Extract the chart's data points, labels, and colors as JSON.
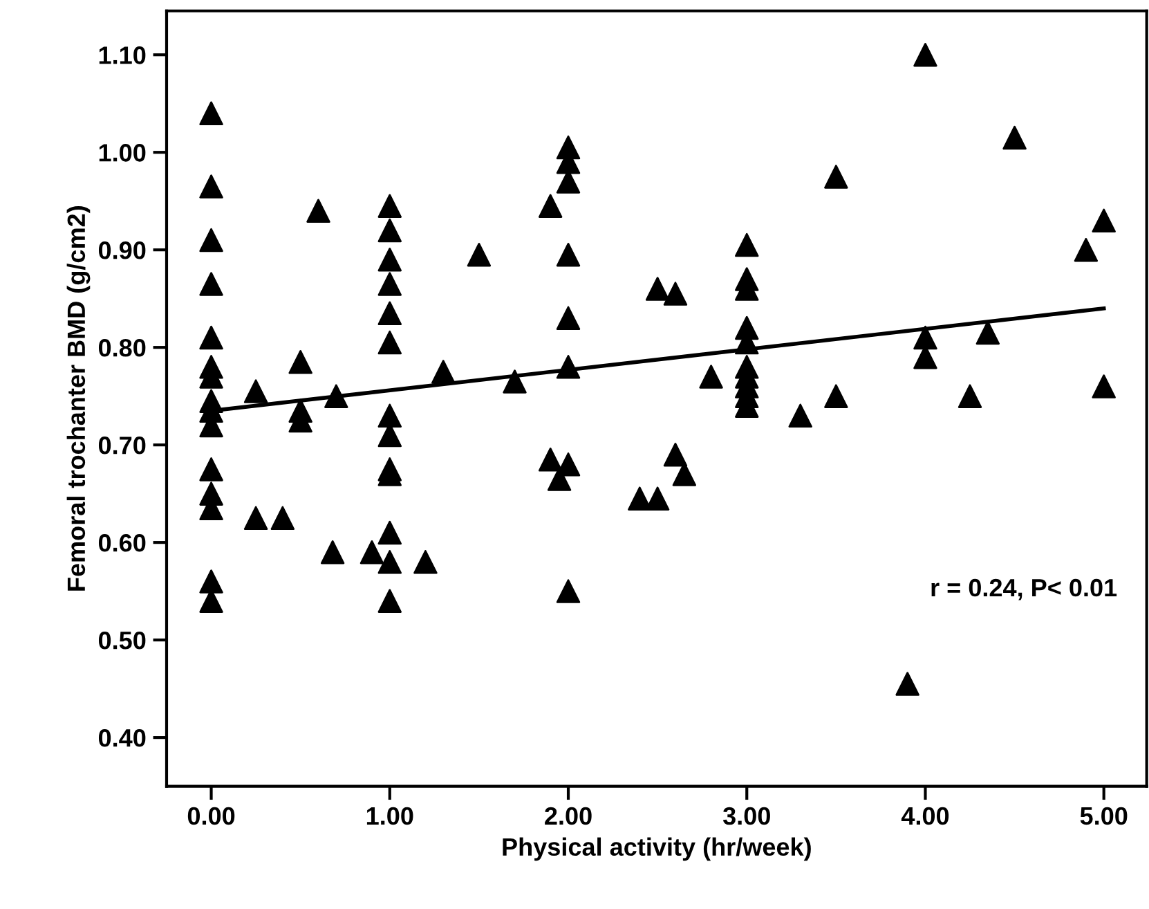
{
  "chart_data": {
    "type": "scatter",
    "xlabel": "Physical activity (hr/week)",
    "ylabel": "Femoral trochanter BMD (g/cm2)",
    "annotations": [
      "r = 0.24, P< 0.01"
    ],
    "xlim": [
      -0.25,
      5.24
    ],
    "ylim": [
      0.35,
      1.145
    ],
    "xticks": [
      {
        "value": 0,
        "label": "0.00"
      },
      {
        "value": 1,
        "label": "1.00"
      },
      {
        "value": 2,
        "label": "2.00"
      },
      {
        "value": 3,
        "label": "3.00"
      },
      {
        "value": 4,
        "label": "4.00"
      },
      {
        "value": 5,
        "label": "5.00"
      }
    ],
    "yticks": [
      {
        "value": 0.4,
        "label": "0.40"
      },
      {
        "value": 0.5,
        "label": "0.50"
      },
      {
        "value": 0.6,
        "label": "0.60"
      },
      {
        "value": 0.7,
        "label": "0.70"
      },
      {
        "value": 0.8,
        "label": "0.80"
      },
      {
        "value": 0.9,
        "label": "0.90"
      },
      {
        "value": 1.0,
        "label": "1.00"
      },
      {
        "value": 1.1,
        "label": "1.10"
      }
    ],
    "grid": false,
    "series": [
      {
        "marker": "triangle",
        "color": "#000000",
        "x": [
          0,
          0,
          0,
          0,
          0,
          0,
          0,
          0,
          0,
          0,
          0,
          0,
          0,
          0,
          0,
          0.25,
          0.25,
          0.4,
          0.5,
          0.5,
          0.5,
          0.6,
          0.68,
          0.7,
          0.9,
          1,
          1,
          1,
          1,
          1,
          1,
          1,
          1,
          1,
          1,
          1,
          1,
          1,
          1.2,
          1.3,
          1.5,
          1.7,
          1.9,
          1.9,
          1.95,
          2,
          2,
          2,
          2,
          2,
          2,
          2,
          2,
          2.4,
          2.5,
          2.5,
          2.6,
          2.6,
          2.65,
          2.8,
          3,
          3,
          3,
          3,
          3,
          3,
          3,
          3,
          3,
          3,
          3.3,
          3.5,
          3.5,
          3.9,
          4,
          4,
          4,
          4.25,
          4.35,
          4.5,
          4.9,
          5,
          5
        ],
        "values": [
          1.04,
          0.965,
          0.91,
          0.865,
          0.81,
          0.78,
          0.77,
          0.745,
          0.735,
          0.72,
          0.675,
          0.65,
          0.635,
          0.56,
          0.54,
          0.755,
          0.625,
          0.625,
          0.785,
          0.735,
          0.725,
          0.94,
          0.59,
          0.75,
          0.59,
          0.945,
          0.92,
          0.89,
          0.865,
          0.835,
          0.805,
          0.73,
          0.71,
          0.675,
          0.67,
          0.61,
          0.58,
          0.54,
          0.58,
          0.775,
          0.895,
          0.765,
          0.945,
          0.685,
          0.665,
          1.005,
          0.99,
          0.97,
          0.895,
          0.83,
          0.78,
          0.68,
          0.55,
          0.645,
          0.86,
          0.645,
          0.855,
          0.69,
          0.67,
          0.77,
          0.905,
          0.87,
          0.86,
          0.82,
          0.805,
          0.78,
          0.77,
          0.76,
          0.75,
          0.74,
          0.73,
          0.975,
          0.75,
          0.455,
          1.1,
          0.81,
          0.79,
          0.75,
          0.815,
          1.015,
          0.9,
          0.93,
          0.76
        ]
      },
      {
        "type": "line",
        "color": "#000000",
        "x": [
          0,
          5
        ],
        "values": [
          0.735,
          0.84
        ]
      }
    ]
  }
}
